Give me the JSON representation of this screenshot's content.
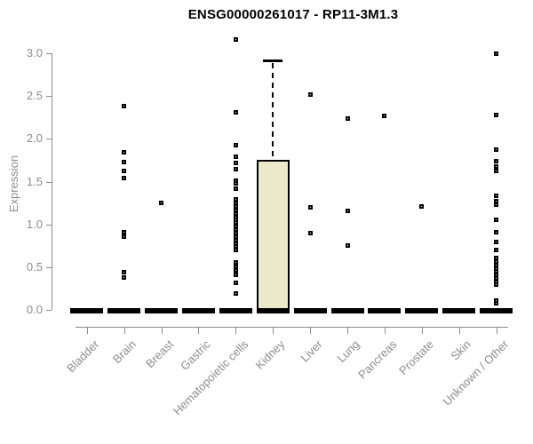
{
  "chart_data": {
    "type": "boxplot",
    "title": "ENSG00000261017 - RP11-3M1.3",
    "ylabel": "Expression",
    "xlabel": "",
    "ylim": [
      0.0,
      3.0
    ],
    "yticks": [
      "0.0",
      "0.5",
      "1.0",
      "1.5",
      "2.0",
      "2.5",
      "3.0"
    ],
    "grid": false,
    "legend": "none",
    "colors": {
      "box_fill": "#ece9ca",
      "box_border": "#000000",
      "point": "#000000",
      "axis": "#8c8c8c",
      "title": "#000000"
    },
    "categories": [
      "Bladder",
      "Brain",
      "Breast",
      "Gastric",
      "Hematopoietic cells",
      "Kidney",
      "Liver",
      "Lung",
      "Pancreas",
      "Prostate",
      "Skin",
      "Unknown / Other"
    ],
    "series": [
      {
        "category": "Bladder",
        "box": {
          "q1": 0,
          "median": 0,
          "q3": 0,
          "whisker_low": 0,
          "whisker_high": 0
        },
        "points": []
      },
      {
        "category": "Brain",
        "box": {
          "q1": 0,
          "median": 0,
          "q3": 0,
          "whisker_low": 0,
          "whisker_high": 0
        },
        "points": [
          2.38,
          1.84,
          1.73,
          1.63,
          1.54,
          0.91,
          0.86,
          0.44,
          0.38
        ]
      },
      {
        "category": "Breast",
        "box": {
          "q1": 0,
          "median": 0,
          "q3": 0,
          "whisker_low": 0,
          "whisker_high": 0
        },
        "points": [
          1.25
        ]
      },
      {
        "category": "Gastric",
        "box": {
          "q1": 0,
          "median": 0,
          "q3": 0,
          "whisker_low": 0,
          "whisker_high": 0
        },
        "points": []
      },
      {
        "category": "Hematopoietic cells",
        "box": {
          "q1": 0,
          "median": 0,
          "q3": 0,
          "whisker_low": 0,
          "whisker_high": 0
        },
        "points": [
          3.16,
          2.31,
          1.93,
          1.79,
          1.72,
          1.65,
          1.51,
          1.48,
          1.42,
          1.29,
          1.25,
          1.21,
          1.17,
          1.13,
          1.09,
          1.06,
          1.02,
          0.98,
          0.94,
          0.9,
          0.86,
          0.82,
          0.78,
          0.74,
          0.7,
          0.56,
          0.51,
          0.46,
          0.41,
          0.32,
          0.2
        ]
      },
      {
        "category": "Kidney",
        "box": {
          "q1": 0,
          "median": 0,
          "q3": 1.76,
          "whisker_low": 0,
          "whisker_high": 2.91
        },
        "points": []
      },
      {
        "category": "Liver",
        "box": {
          "q1": 0,
          "median": 0,
          "q3": 0,
          "whisker_low": 0,
          "whisker_high": 0
        },
        "points": [
          2.52,
          1.2,
          0.9
        ]
      },
      {
        "category": "Lung",
        "box": {
          "q1": 0,
          "median": 0,
          "q3": 0,
          "whisker_low": 0,
          "whisker_high": 0
        },
        "points": [
          2.24,
          1.16,
          0.75
        ]
      },
      {
        "category": "Pancreas",
        "box": {
          "q1": 0,
          "median": 0,
          "q3": 0,
          "whisker_low": 0,
          "whisker_high": 0
        },
        "points": [
          2.27
        ]
      },
      {
        "category": "Prostate",
        "box": {
          "q1": 0,
          "median": 0,
          "q3": 0,
          "whisker_low": 0,
          "whisker_high": 0
        },
        "points": [
          1.21
        ]
      },
      {
        "category": "Skin",
        "box": {
          "q1": 0,
          "median": 0,
          "q3": 0,
          "whisker_low": 0,
          "whisker_high": 0
        },
        "points": []
      },
      {
        "category": "Unknown / Other",
        "box": {
          "q1": 0,
          "median": 0,
          "q3": 0,
          "whisker_low": 0,
          "whisker_high": 0
        },
        "points": [
          2.99,
          2.28,
          1.88,
          1.74,
          1.68,
          1.63,
          1.34,
          1.27,
          1.23,
          1.06,
          0.91,
          0.8,
          0.7,
          0.61,
          0.57,
          0.53,
          0.49,
          0.45,
          0.41,
          0.37,
          0.33,
          0.3,
          0.11,
          0.08
        ]
      }
    ]
  }
}
